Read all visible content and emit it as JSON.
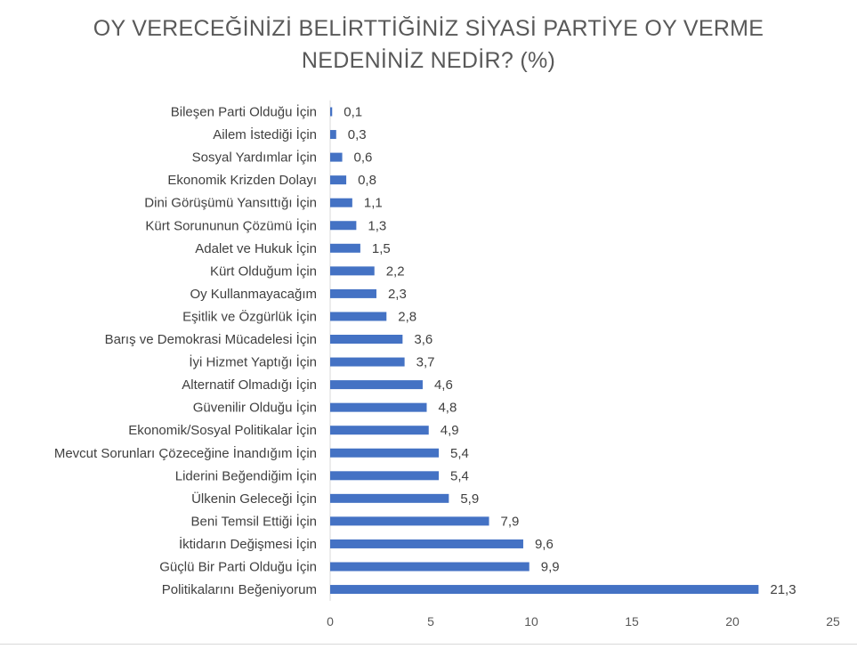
{
  "chart_data": {
    "type": "bar",
    "orientation": "horizontal",
    "title_lines": [
      "OY VERECEĞİNİZİ BELİRTTİĞİNİZ SİYASİ PARTİYE OY VERME",
      "NEDENİNİZ NEDİR? (%)"
    ],
    "categories": [
      "Bileşen Parti Olduğu İçin",
      "Ailem İstediği İçin",
      "Sosyal Yardımlar İçin",
      "Ekonomik Krizden Dolayı",
      "Dini Görüşümü Yansıttığı İçin",
      "Kürt Sorununun Çözümü İçin",
      "Adalet ve Hukuk İçin",
      "Kürt Olduğum İçin",
      "Oy Kullanmayacağım",
      "Eşitlik ve Özgürlük İçin",
      "Barış ve Demokrasi Mücadelesi İçin",
      "İyi Hizmet Yaptığı İçin",
      "Alternatif Olmadığı İçin",
      "Güvenilir Olduğu İçin",
      "Ekonomik/Sosyal Politikalar İçin",
      "Mevcut Sorunları Çözeceğine İnandığım İçin",
      "Liderini Beğendiğim İçin",
      "Ülkenin Geleceği İçin",
      "Beni Temsil Ettiği İçin",
      "İktidarın Değişmesi İçin",
      "Güçlü Bir Parti Olduğu İçin",
      "Politikalarını Beğeniyorum"
    ],
    "values": [
      0.1,
      0.3,
      0.6,
      0.8,
      1.1,
      1.3,
      1.5,
      2.2,
      2.3,
      2.8,
      3.6,
      3.7,
      4.6,
      4.8,
      4.9,
      5.4,
      5.4,
      5.9,
      7.9,
      9.6,
      9.9,
      21.3
    ],
    "value_labels": [
      "0,1",
      "0,3",
      "0,6",
      "0,8",
      "1,1",
      "1,3",
      "1,5",
      "2,2",
      "2,3",
      "2,8",
      "3,6",
      "3,7",
      "4,6",
      "4,8",
      "4,9",
      "5,4",
      "5,4",
      "5,9",
      "7,9",
      "9,6",
      "9,9",
      "21,3"
    ],
    "xlim": [
      0,
      25
    ],
    "x_ticks": [
      0,
      5,
      10,
      15,
      20,
      25
    ],
    "grid": false,
    "legend": "none",
    "bar_color": "#4472c4"
  }
}
